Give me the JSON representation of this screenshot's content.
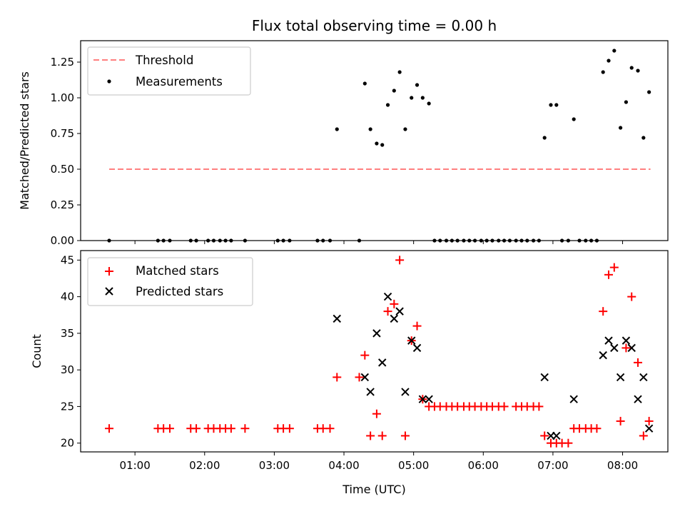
{
  "chart_data": [
    {
      "type": "scatter",
      "title": "Flux total observing time = 0.00 h",
      "xlabel": "",
      "ylabel": "Matched/Predicted stars",
      "xlim": [
        0.22,
        8.65
      ],
      "ylim": [
        0,
        1.4
      ],
      "yticks": [
        0.0,
        0.25,
        0.5,
        0.75,
        1.0,
        1.25
      ],
      "ytick_labels": [
        "0.00",
        "0.25",
        "0.50",
        "0.75",
        "1.00",
        "1.25"
      ],
      "xticks": [
        1,
        2,
        3,
        4,
        5,
        6,
        7,
        8
      ],
      "xtick_labels_visible": false,
      "legend_position": "top-left",
      "threshold": {
        "name": "Threshold",
        "value": 0.5,
        "x_range": [
          0.63,
          8.4
        ],
        "color": "#ff7f7f",
        "style": "dashed"
      },
      "series": [
        {
          "name": "Measurements",
          "color": "#000000",
          "points": [
            [
              0.63,
              0.0
            ],
            [
              1.33,
              0.0
            ],
            [
              1.41,
              0.0
            ],
            [
              1.5,
              0.0
            ],
            [
              1.8,
              0.0
            ],
            [
              1.88,
              0.0
            ],
            [
              2.05,
              0.0
            ],
            [
              2.13,
              0.0
            ],
            [
              2.22,
              0.0
            ],
            [
              2.3,
              0.0
            ],
            [
              2.38,
              0.0
            ],
            [
              2.58,
              0.0
            ],
            [
              3.05,
              0.0
            ],
            [
              3.13,
              0.0
            ],
            [
              3.22,
              0.0
            ],
            [
              3.62,
              0.0
            ],
            [
              3.7,
              0.0
            ],
            [
              3.8,
              0.0
            ],
            [
              3.9,
              0.78
            ],
            [
              4.22,
              0.0
            ],
            [
              4.3,
              1.1
            ],
            [
              4.38,
              0.78
            ],
            [
              4.47,
              0.68
            ],
            [
              4.55,
              0.67
            ],
            [
              4.63,
              0.95
            ],
            [
              4.72,
              1.05
            ],
            [
              4.8,
              1.18
            ],
            [
              4.88,
              0.78
            ],
            [
              4.97,
              1.0
            ],
            [
              5.05,
              1.09
            ],
            [
              5.13,
              1.0
            ],
            [
              5.22,
              0.96
            ],
            [
              5.3,
              0.0
            ],
            [
              5.38,
              0.0
            ],
            [
              5.47,
              0.0
            ],
            [
              5.55,
              0.0
            ],
            [
              5.63,
              0.0
            ],
            [
              5.72,
              0.0
            ],
            [
              5.8,
              0.0
            ],
            [
              5.88,
              0.0
            ],
            [
              5.97,
              0.0
            ],
            [
              6.05,
              0.0
            ],
            [
              6.13,
              0.0
            ],
            [
              6.22,
              0.0
            ],
            [
              6.3,
              0.0
            ],
            [
              6.38,
              0.0
            ],
            [
              6.47,
              0.0
            ],
            [
              6.55,
              0.0
            ],
            [
              6.63,
              0.0
            ],
            [
              6.72,
              0.0
            ],
            [
              6.8,
              0.0
            ],
            [
              6.88,
              0.72
            ],
            [
              6.97,
              0.95
            ],
            [
              7.05,
              0.95
            ],
            [
              7.13,
              0.0
            ],
            [
              7.22,
              0.0
            ],
            [
              7.3,
              0.85
            ],
            [
              7.38,
              0.0
            ],
            [
              7.47,
              0.0
            ],
            [
              7.55,
              0.0
            ],
            [
              7.63,
              0.0
            ],
            [
              7.72,
              1.18
            ],
            [
              7.8,
              1.26
            ],
            [
              7.88,
              1.33
            ],
            [
              7.97,
              0.79
            ],
            [
              8.05,
              0.97
            ],
            [
              8.13,
              1.21
            ],
            [
              8.22,
              1.19
            ],
            [
              8.3,
              0.72
            ],
            [
              8.38,
              1.04
            ]
          ]
        }
      ]
    },
    {
      "type": "scatter",
      "title": "",
      "xlabel": "Time (UTC)",
      "ylabel": "Count",
      "xlim": [
        0.22,
        8.65
      ],
      "ylim": [
        18.8,
        46.3
      ],
      "yticks": [
        20,
        25,
        30,
        35,
        40,
        45
      ],
      "ytick_labels": [
        "20",
        "25",
        "30",
        "35",
        "40",
        "45"
      ],
      "xticks": [
        1,
        2,
        3,
        4,
        5,
        6,
        7,
        8
      ],
      "xtick_labels": [
        "01:00",
        "02:00",
        "03:00",
        "04:00",
        "05:00",
        "06:00",
        "07:00",
        "08:00"
      ],
      "legend_position": "top-left",
      "series": [
        {
          "name": "Matched stars",
          "color": "#ff0000",
          "marker": "plus",
          "points": [
            [
              0.63,
              22
            ],
            [
              1.33,
              22
            ],
            [
              1.41,
              22
            ],
            [
              1.5,
              22
            ],
            [
              1.8,
              22
            ],
            [
              1.88,
              22
            ],
            [
              2.05,
              22
            ],
            [
              2.13,
              22
            ],
            [
              2.22,
              22
            ],
            [
              2.3,
              22
            ],
            [
              2.38,
              22
            ],
            [
              2.58,
              22
            ],
            [
              3.05,
              22
            ],
            [
              3.13,
              22
            ],
            [
              3.22,
              22
            ],
            [
              3.62,
              22
            ],
            [
              3.7,
              22
            ],
            [
              3.8,
              22
            ],
            [
              3.9,
              29
            ],
            [
              4.22,
              29
            ],
            [
              4.3,
              32
            ],
            [
              4.38,
              21
            ],
            [
              4.47,
              24
            ],
            [
              4.55,
              21
            ],
            [
              4.63,
              38
            ],
            [
              4.72,
              39
            ],
            [
              4.8,
              45
            ],
            [
              4.88,
              21
            ],
            [
              4.97,
              34
            ],
            [
              5.05,
              36
            ],
            [
              5.13,
              26
            ],
            [
              5.22,
              25
            ],
            [
              5.3,
              25
            ],
            [
              5.38,
              25
            ],
            [
              5.47,
              25
            ],
            [
              5.55,
              25
            ],
            [
              5.63,
              25
            ],
            [
              5.72,
              25
            ],
            [
              5.8,
              25
            ],
            [
              5.88,
              25
            ],
            [
              5.97,
              25
            ],
            [
              6.05,
              25
            ],
            [
              6.13,
              25
            ],
            [
              6.22,
              25
            ],
            [
              6.3,
              25
            ],
            [
              6.47,
              25
            ],
            [
              6.55,
              25
            ],
            [
              6.63,
              25
            ],
            [
              6.72,
              25
            ],
            [
              6.8,
              25
            ],
            [
              6.88,
              21
            ],
            [
              6.97,
              20
            ],
            [
              7.05,
              20
            ],
            [
              7.13,
              20
            ],
            [
              7.22,
              20
            ],
            [
              7.3,
              22
            ],
            [
              7.38,
              22
            ],
            [
              7.47,
              22
            ],
            [
              7.55,
              22
            ],
            [
              7.63,
              22
            ],
            [
              7.72,
              38
            ],
            [
              7.8,
              43
            ],
            [
              7.88,
              44
            ],
            [
              7.97,
              23
            ],
            [
              8.05,
              33
            ],
            [
              8.13,
              40
            ],
            [
              8.22,
              31
            ],
            [
              8.3,
              21
            ],
            [
              8.38,
              23
            ]
          ]
        },
        {
          "name": "Predicted stars",
          "color": "#000000",
          "marker": "x",
          "points": [
            [
              3.9,
              37
            ],
            [
              4.3,
              29
            ],
            [
              4.38,
              27
            ],
            [
              4.47,
              35
            ],
            [
              4.55,
              31
            ],
            [
              4.63,
              40
            ],
            [
              4.72,
              37
            ],
            [
              4.8,
              38
            ],
            [
              4.88,
              27
            ],
            [
              4.97,
              34
            ],
            [
              5.05,
              33
            ],
            [
              5.13,
              26
            ],
            [
              5.22,
              26
            ],
            [
              6.88,
              29
            ],
            [
              6.97,
              21
            ],
            [
              7.05,
              21
            ],
            [
              7.3,
              26
            ],
            [
              7.72,
              32
            ],
            [
              7.8,
              34
            ],
            [
              7.88,
              33
            ],
            [
              7.97,
              29
            ],
            [
              8.05,
              34
            ],
            [
              8.13,
              33
            ],
            [
              8.22,
              26
            ],
            [
              8.3,
              29
            ],
            [
              8.38,
              22
            ]
          ]
        }
      ]
    }
  ]
}
